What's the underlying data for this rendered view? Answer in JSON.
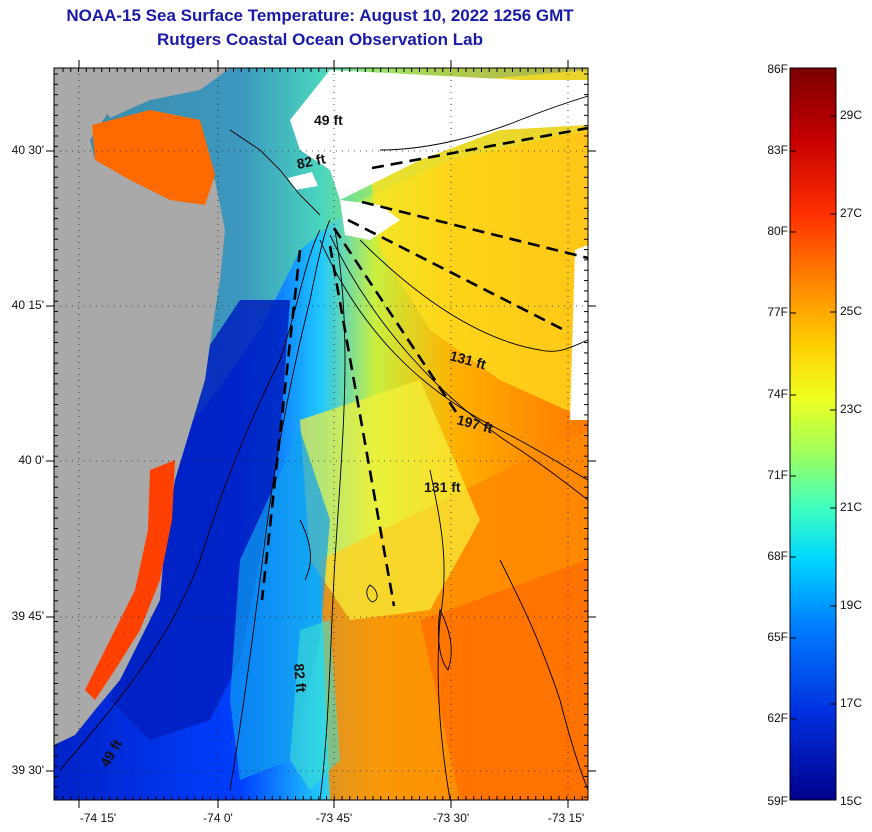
{
  "title": {
    "line1": "NOAA-15 Sea Surface Temperature:  August 10, 2022 1256 GMT",
    "line2": "Rutgers Coastal Ocean Observation Lab"
  },
  "map": {
    "lat_labels": [
      "40 30'",
      "40 15'",
      "40 0'",
      "39 45'",
      "39 30'"
    ],
    "lon_labels": [
      "-74 15'",
      "-74 0'",
      "-73 45'",
      "-73 30'",
      "-73 15'"
    ],
    "depth_labels": [
      "49 ft",
      "82 ft",
      "131 ft",
      "197 ft",
      "131 ft",
      "82 ft",
      "49 ft"
    ]
  },
  "colorbar": {
    "fahrenheit": [
      "86F",
      "83F",
      "80F",
      "77F",
      "74F",
      "71F",
      "68F",
      "65F",
      "62F",
      "59F"
    ],
    "celsius": [
      "29C",
      "27C",
      "25C",
      "23C",
      "21C",
      "19C",
      "17C",
      "15C"
    ],
    "colors": [
      "#7a0000",
      "#c80000",
      "#ff3000",
      "#ff8c00",
      "#ffd000",
      "#f0ff20",
      "#9aff60",
      "#40ffc0",
      "#00d8ff",
      "#0080ff",
      "#0030e0",
      "#00008c"
    ]
  },
  "colors": {
    "title": "#1a1aa8",
    "land": "#a9a9a9",
    "cloud": "#ffffff"
  }
}
